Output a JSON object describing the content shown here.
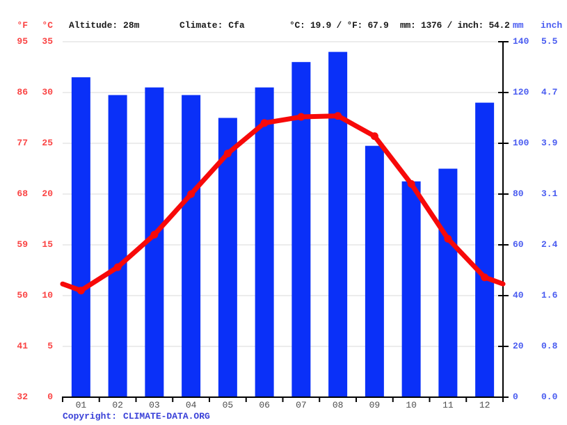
{
  "header": {
    "f_label": "°F",
    "c_label": "°C",
    "altitude": "Altitude: 28m",
    "climate": "Climate: Cfa",
    "temp_summary": "°C: 19.9 / °F: 67.9",
    "precip_summary": "mm: 1376 / inch: 54.2",
    "mm_label": "mm",
    "inch_label": "inch"
  },
  "footer": {
    "copyright_prefix": "Copyright:",
    "copyright_link": "CLIMATE-DATA.ORG"
  },
  "colors": {
    "red": "#fa4343",
    "line_red": "#f70909",
    "bar_blue": "#0a30f8",
    "blue": "#4a5cf0",
    "grid": "#d9d9d9",
    "axis": "#000000",
    "month": "#4d4d4d",
    "ink": "#1a1a1a",
    "link": "#3a41d8"
  },
  "axes": {
    "left_f_ticks": [
      "95",
      "86",
      "77",
      "68",
      "59",
      "50",
      "41",
      "32"
    ],
    "left_c_ticks": [
      "35",
      "30",
      "25",
      "20",
      "15",
      "10",
      "5",
      "0"
    ],
    "right_mm_ticks": [
      "140",
      "120",
      "100",
      "80",
      "60",
      "40",
      "20",
      "0"
    ],
    "right_inch_ticks": [
      "5.5",
      "4.7",
      "3.9",
      "3.1",
      "2.4",
      "1.6",
      "0.8",
      "0.0"
    ]
  },
  "chart_data": {
    "type": "bar+line climograph",
    "categories": [
      "01",
      "02",
      "03",
      "04",
      "05",
      "06",
      "07",
      "08",
      "09",
      "10",
      "11",
      "12"
    ],
    "series": [
      {
        "name": "precipitation_mm",
        "type": "bar",
        "values": [
          126,
          119,
          122,
          119,
          110,
          122,
          132,
          136,
          99,
          85,
          90,
          116
        ],
        "axis_min": 0,
        "axis_max": 140
      },
      {
        "name": "temperature_c",
        "type": "line",
        "values": [
          10.5,
          12.8,
          16.0,
          20.0,
          24.0,
          27.0,
          27.6,
          27.7,
          25.7,
          21.0,
          15.6,
          11.8
        ],
        "axis_min": 0,
        "axis_max": 35,
        "edge_extension": "average_of_first_and_last"
      }
    ],
    "grid": true,
    "legend": "none",
    "annual_mean_temp_c": 19.9,
    "annual_precip_mm": 1376
  }
}
